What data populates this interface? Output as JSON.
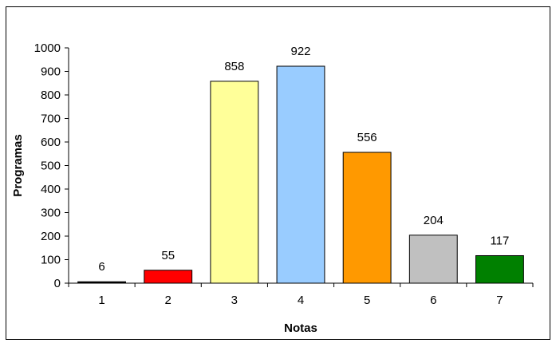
{
  "chart_data": {
    "type": "bar",
    "title": "",
    "xlabel": "Notas",
    "ylabel": "Programas",
    "categories": [
      "1",
      "2",
      "3",
      "4",
      "5",
      "6",
      "7"
    ],
    "values": [
      6,
      55,
      858,
      922,
      556,
      204,
      117
    ],
    "data_labels": [
      "6",
      "55",
      "858",
      "922",
      "556",
      "204",
      "117"
    ],
    "bar_colors": [
      "#000000",
      "#ff0000",
      "#ffff99",
      "#99ccff",
      "#ff9900",
      "#c0c0c0",
      "#008000"
    ],
    "ylim": [
      0,
      1000
    ],
    "yticks": [
      0,
      100,
      200,
      300,
      400,
      500,
      600,
      700,
      800,
      900,
      1000
    ],
    "ytick_labels": [
      "0",
      "100",
      "200",
      "300",
      "400",
      "500",
      "600",
      "700",
      "800",
      "900",
      "1000"
    ],
    "grid": false,
    "legend": "none"
  }
}
